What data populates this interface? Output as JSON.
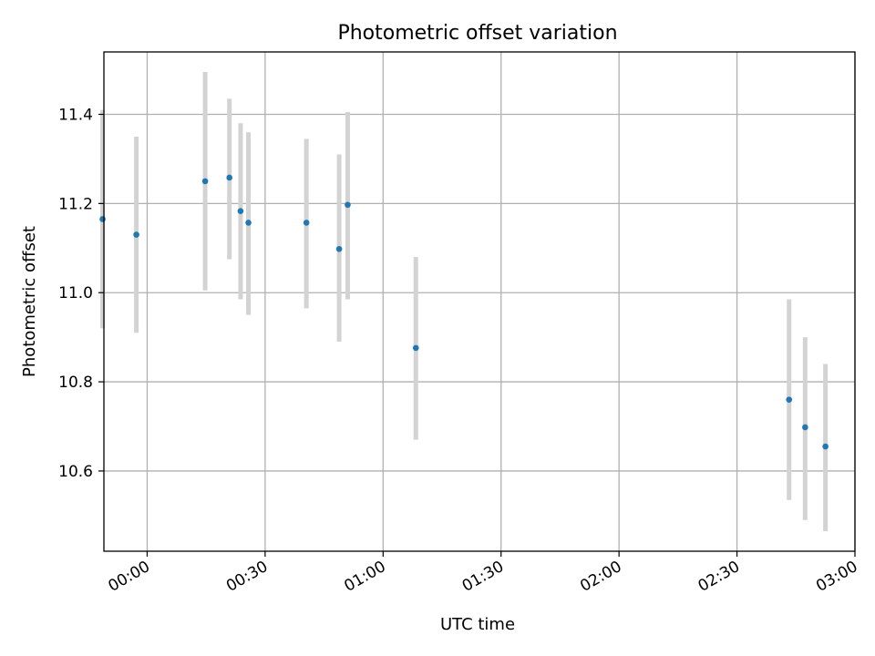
{
  "chart_data": {
    "type": "scatter",
    "title": "Photometric offset variation",
    "xlabel": "UTC time",
    "ylabel": "Photometric offset",
    "grid": true,
    "xlim": [
      "23:49",
      "03:00"
    ],
    "ylim": [
      10.42,
      11.54
    ],
    "x_ticks": [
      "00:00",
      "00:30",
      "01:00",
      "01:30",
      "02:00",
      "02:30",
      "03:00"
    ],
    "y_ticks": [
      "10.6",
      "10.8",
      "11.0",
      "11.2",
      "11.4"
    ],
    "series": [
      {
        "marker_color": "#1f77b4",
        "errorbar_color": "#d3d3d3",
        "points": [
          {
            "x": "23:48:40",
            "y": 11.165,
            "ylo": 10.92,
            "yhi": 11.41
          },
          {
            "x": "23:57:15",
            "y": 11.13,
            "ylo": 10.91,
            "yhi": 11.35
          },
          {
            "x": "00:14:45",
            "y": 11.25,
            "ylo": 11.005,
            "yhi": 11.495
          },
          {
            "x": "00:20:55",
            "y": 11.258,
            "ylo": 11.075,
            "yhi": 11.435
          },
          {
            "x": "00:23:45",
            "y": 11.183,
            "ylo": 10.985,
            "yhi": 11.38
          },
          {
            "x": "00:25:45",
            "y": 11.157,
            "ylo": 10.95,
            "yhi": 11.36
          },
          {
            "x": "00:40:30",
            "y": 11.157,
            "ylo": 10.965,
            "yhi": 11.345
          },
          {
            "x": "00:48:50",
            "y": 11.098,
            "ylo": 10.89,
            "yhi": 11.31
          },
          {
            "x": "00:51:00",
            "y": 11.197,
            "ylo": 10.985,
            "yhi": 11.405
          },
          {
            "x": "01:08:20",
            "y": 10.876,
            "ylo": 10.67,
            "yhi": 11.08
          },
          {
            "x": "02:43:15",
            "y": 10.76,
            "ylo": 10.535,
            "yhi": 10.985
          },
          {
            "x": "02:47:20",
            "y": 10.698,
            "ylo": 10.49,
            "yhi": 10.9
          },
          {
            "x": "02:52:30",
            "y": 10.655,
            "ylo": 10.465,
            "yhi": 10.84
          }
        ]
      }
    ]
  }
}
